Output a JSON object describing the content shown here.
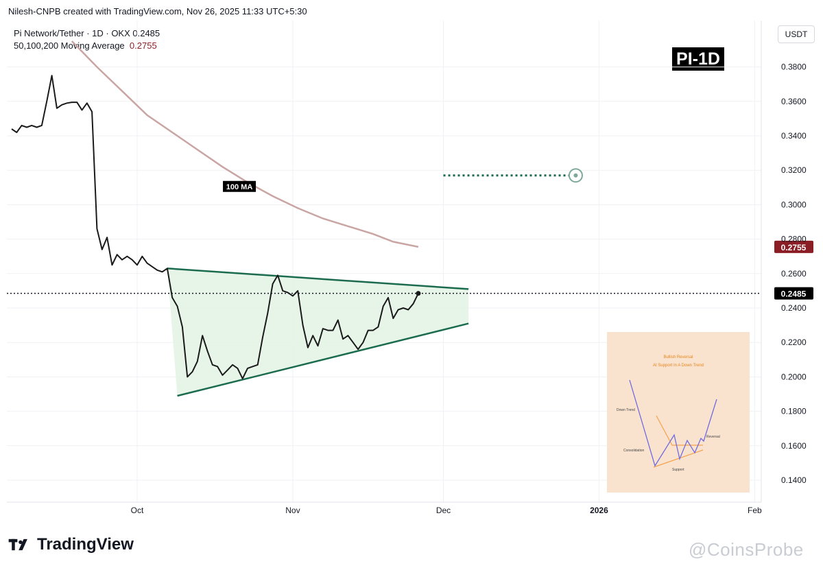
{
  "header": {
    "credit": "Nilesh-CNPB created with TradingView.com, Nov 26, 2025 11:33 UTC+5:30"
  },
  "legend": {
    "symbol_line": "Pi Network/Tether · 1D · OKX  0.2485",
    "ma_label": "50,100,200 Moving Average",
    "ma_value": "0.2755"
  },
  "unit": "USDT",
  "badge": "PI-1D",
  "footer": {
    "brand": "TradingView",
    "watermark": "@CoinsProbe"
  },
  "colors": {
    "price": "#1a1a1a",
    "ma": "#c9a5a3",
    "pattern": "#1b6b4e",
    "pattern_fill": "#e3f3e5",
    "ma_tag_bg": "#8b1e25",
    "current_tag_bg": "#000000",
    "inset_bg": "#f9e3cf"
  },
  "chart_data": {
    "type": "line",
    "title": "Pi Network/Tether · 1D · OKX",
    "ylim": [
      0.13,
      0.395
    ],
    "y_ticks": [
      "0.3800",
      "0.3600",
      "0.3400",
      "0.3200",
      "0.3000",
      "0.2800",
      "0.2600",
      "0.2400",
      "0.2200",
      "0.2000",
      "0.1800",
      "0.1600",
      "0.1400"
    ],
    "x_ticks": [
      {
        "label": "Oct",
        "date": "2025-10-01"
      },
      {
        "label": "Nov",
        "date": "2025-11-01"
      },
      {
        "label": "Dec",
        "date": "2025-12-01"
      },
      {
        "label": "2026",
        "date": "2026-01-01"
      },
      {
        "label": "Feb",
        "date": "2026-02-01"
      }
    ],
    "series": [
      {
        "name": "Pi Network/Tether",
        "points": [
          [
            "2025-09-06",
            0.344
          ],
          [
            "2025-09-07",
            0.342
          ],
          [
            "2025-09-08",
            0.346
          ],
          [
            "2025-09-09",
            0.345
          ],
          [
            "2025-09-10",
            0.346
          ],
          [
            "2025-09-11",
            0.345
          ],
          [
            "2025-09-12",
            0.346
          ],
          [
            "2025-09-13",
            0.36
          ],
          [
            "2025-09-14",
            0.375
          ],
          [
            "2025-09-15",
            0.356
          ],
          [
            "2025-09-16",
            0.358
          ],
          [
            "2025-09-17",
            0.359
          ],
          [
            "2025-09-18",
            0.3595
          ],
          [
            "2025-09-19",
            0.3595
          ],
          [
            "2025-09-20",
            0.355
          ],
          [
            "2025-09-21",
            0.359
          ],
          [
            "2025-09-22",
            0.354
          ],
          [
            "2025-09-23",
            0.286
          ],
          [
            "2025-09-24",
            0.274
          ],
          [
            "2025-09-25",
            0.281
          ],
          [
            "2025-09-26",
            0.265
          ],
          [
            "2025-09-27",
            0.271
          ],
          [
            "2025-09-28",
            0.268
          ],
          [
            "2025-09-29",
            0.27
          ],
          [
            "2025-09-30",
            0.268
          ],
          [
            "2025-10-01",
            0.265
          ],
          [
            "2025-10-02",
            0.27
          ],
          [
            "2025-10-03",
            0.266
          ],
          [
            "2025-10-04",
            0.264
          ],
          [
            "2025-10-05",
            0.262
          ],
          [
            "2025-10-06",
            0.261
          ],
          [
            "2025-10-07",
            0.263
          ],
          [
            "2025-10-08",
            0.246
          ],
          [
            "2025-10-09",
            0.241
          ],
          [
            "2025-10-10",
            0.229
          ],
          [
            "2025-10-11",
            0.2
          ],
          [
            "2025-10-12",
            0.203
          ],
          [
            "2025-10-13",
            0.209
          ],
          [
            "2025-10-14",
            0.224
          ],
          [
            "2025-10-15",
            0.215
          ],
          [
            "2025-10-16",
            0.207
          ],
          [
            "2025-10-17",
            0.206
          ],
          [
            "2025-10-18",
            0.201
          ],
          [
            "2025-10-19",
            0.204
          ],
          [
            "2025-10-20",
            0.207
          ],
          [
            "2025-10-21",
            0.205
          ],
          [
            "2025-10-22",
            0.199
          ],
          [
            "2025-10-23",
            0.205
          ],
          [
            "2025-10-24",
            0.206
          ],
          [
            "2025-10-25",
            0.207
          ],
          [
            "2025-10-26",
            0.223
          ],
          [
            "2025-10-27",
            0.237
          ],
          [
            "2025-10-28",
            0.254
          ],
          [
            "2025-10-29",
            0.259
          ],
          [
            "2025-10-30",
            0.25
          ],
          [
            "2025-10-31",
            0.249
          ],
          [
            "2025-11-01",
            0.247
          ],
          [
            "2025-11-02",
            0.25
          ],
          [
            "2025-11-03",
            0.23
          ],
          [
            "2025-11-04",
            0.217
          ],
          [
            "2025-11-05",
            0.224
          ],
          [
            "2025-11-06",
            0.218
          ],
          [
            "2025-11-07",
            0.228
          ],
          [
            "2025-11-08",
            0.227
          ],
          [
            "2025-11-09",
            0.227
          ],
          [
            "2025-11-10",
            0.233
          ],
          [
            "2025-11-11",
            0.222
          ],
          [
            "2025-11-12",
            0.224
          ],
          [
            "2025-11-13",
            0.22
          ],
          [
            "2025-11-14",
            0.216
          ],
          [
            "2025-11-15",
            0.22
          ],
          [
            "2025-11-16",
            0.227
          ],
          [
            "2025-11-17",
            0.227
          ],
          [
            "2025-11-18",
            0.229
          ],
          [
            "2025-11-19",
            0.241
          ],
          [
            "2025-11-20",
            0.246
          ],
          [
            "2025-11-21",
            0.234
          ],
          [
            "2025-11-22",
            0.239
          ],
          [
            "2025-11-23",
            0.24
          ],
          [
            "2025-11-24",
            0.239
          ],
          [
            "2025-11-25",
            0.2425
          ],
          [
            "2025-11-26",
            0.2485
          ]
        ]
      },
      {
        "name": "100 MA",
        "points": [
          [
            "2025-09-18",
            0.395
          ],
          [
            "2025-09-23",
            0.38
          ],
          [
            "2025-09-28",
            0.366
          ],
          [
            "2025-10-03",
            0.352
          ],
          [
            "2025-10-08",
            0.342
          ],
          [
            "2025-10-13",
            0.332
          ],
          [
            "2025-10-18",
            0.322
          ],
          [
            "2025-10-23",
            0.313
          ],
          [
            "2025-10-28",
            0.305
          ],
          [
            "2025-11-02",
            0.298
          ],
          [
            "2025-11-07",
            0.292
          ],
          [
            "2025-11-12",
            0.2875
          ],
          [
            "2025-11-17",
            0.283
          ],
          [
            "2025-11-21",
            0.2785
          ],
          [
            "2025-11-26",
            0.2755
          ]
        ]
      }
    ],
    "triangle": {
      "upper": [
        [
          "2025-10-07",
          0.263
        ],
        [
          "2025-12-06",
          0.251
        ]
      ],
      "lower": [
        [
          "2025-10-09",
          0.189
        ],
        [
          "2025-12-06",
          0.231
        ]
      ]
    },
    "target_line": {
      "from": "2025-12-01",
      "to": "2026-01-01",
      "y": 0.317
    },
    "ma_tag_label": "100 MA",
    "current_price": {
      "label": "0.2485",
      "y": 0.2485
    },
    "ma_price": {
      "label": "0.2755",
      "y": 0.2755
    },
    "inset": {
      "title_line1": "Bullish Reversal",
      "title_line2": "At Support In A Down Trend",
      "labels": {
        "down_trend": "Down Trend",
        "consolidation": "Consolidation",
        "support": "Support",
        "reversal": "Reversal"
      }
    }
  }
}
